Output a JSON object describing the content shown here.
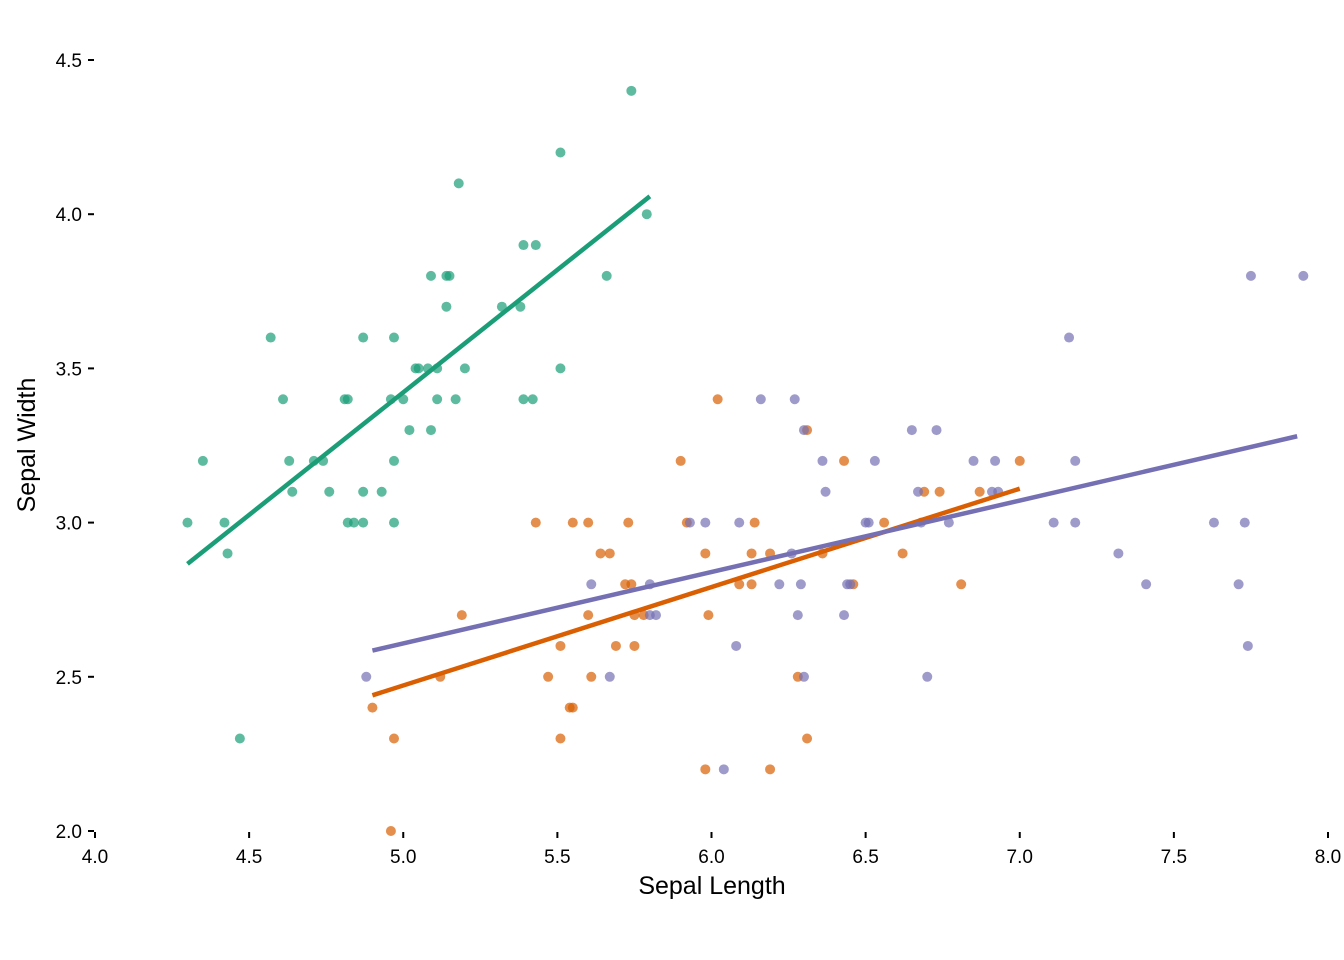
{
  "chart_data": {
    "type": "scatter",
    "title": "",
    "xlabel": "Sepal Length",
    "ylabel": "Sepal Width",
    "xlim": [
      4.0,
      8.0
    ],
    "ylim": [
      2.0,
      4.5
    ],
    "xticks": [
      "4.0",
      "4.5",
      "5.0",
      "5.5",
      "6.0",
      "6.5",
      "7.0",
      "7.5",
      "8.0"
    ],
    "yticks": [
      "2.0",
      "2.5",
      "3.0",
      "3.5",
      "4.0",
      "4.5"
    ],
    "grid": false,
    "legend": "none",
    "series": [
      {
        "color": "#1b9e77",
        "points": [
          [
            4.3,
            3.0
          ],
          [
            4.35,
            3.2
          ],
          [
            4.42,
            3.0
          ],
          [
            4.43,
            2.9
          ],
          [
            4.47,
            2.3
          ],
          [
            4.57,
            3.6
          ],
          [
            4.61,
            3.4
          ],
          [
            4.63,
            3.2
          ],
          [
            4.64,
            3.1
          ],
          [
            4.71,
            3.2
          ],
          [
            4.74,
            3.2
          ],
          [
            4.76,
            3.1
          ],
          [
            4.81,
            3.4
          ],
          [
            4.82,
            3.4
          ],
          [
            4.82,
            3.0
          ],
          [
            4.84,
            3.0
          ],
          [
            4.87,
            3.6
          ],
          [
            4.87,
            3.1
          ],
          [
            4.87,
            3.0
          ],
          [
            4.93,
            3.1
          ],
          [
            4.96,
            3.4
          ],
          [
            4.97,
            3.6
          ],
          [
            4.97,
            3.2
          ],
          [
            4.97,
            3.0
          ],
          [
            5.0,
            3.4
          ],
          [
            5.02,
            3.3
          ],
          [
            5.04,
            3.5
          ],
          [
            5.05,
            3.5
          ],
          [
            5.08,
            3.5
          ],
          [
            5.09,
            3.8
          ],
          [
            5.09,
            3.3
          ],
          [
            5.11,
            3.5
          ],
          [
            5.11,
            3.4
          ],
          [
            5.14,
            3.8
          ],
          [
            5.15,
            3.8
          ],
          [
            5.14,
            3.7
          ],
          [
            5.17,
            3.4
          ],
          [
            5.18,
            4.1
          ],
          [
            5.2,
            3.5
          ],
          [
            5.32,
            3.7
          ],
          [
            5.38,
            3.7
          ],
          [
            5.39,
            3.9
          ],
          [
            5.39,
            3.4
          ],
          [
            5.42,
            3.4
          ],
          [
            5.43,
            3.9
          ],
          [
            5.51,
            4.2
          ],
          [
            5.51,
            3.5
          ],
          [
            5.66,
            3.8
          ],
          [
            5.74,
            4.4
          ],
          [
            5.79,
            4.0
          ]
        ],
        "fit": [
          [
            4.3,
            2.866
          ],
          [
            5.8,
            4.058
          ]
        ]
      },
      {
        "color": "#d95f02",
        "points": [
          [
            4.9,
            2.4
          ],
          [
            4.96,
            2.0
          ],
          [
            4.97,
            2.3
          ],
          [
            5.12,
            2.5
          ],
          [
            5.19,
            2.7
          ],
          [
            5.43,
            3.0
          ],
          [
            5.47,
            2.5
          ],
          [
            5.51,
            2.6
          ],
          [
            5.51,
            2.3
          ],
          [
            5.54,
            2.4
          ],
          [
            5.55,
            2.4
          ],
          [
            5.55,
            3.0
          ],
          [
            5.6,
            2.7
          ],
          [
            5.6,
            3.0
          ],
          [
            5.61,
            2.5
          ],
          [
            5.64,
            2.9
          ],
          [
            5.67,
            2.9
          ],
          [
            5.72,
            2.8
          ],
          [
            5.73,
            3.0
          ],
          [
            5.74,
            2.8
          ],
          [
            5.75,
            2.7
          ],
          [
            5.75,
            2.6
          ],
          [
            5.69,
            2.6
          ],
          [
            5.78,
            2.7
          ],
          [
            5.9,
            3.2
          ],
          [
            5.92,
            3.0
          ],
          [
            5.98,
            2.9
          ],
          [
            5.98,
            2.2
          ],
          [
            5.99,
            2.7
          ],
          [
            6.02,
            3.4
          ],
          [
            6.09,
            2.8
          ],
          [
            6.13,
            2.8
          ],
          [
            6.13,
            2.9
          ],
          [
            6.14,
            3.0
          ],
          [
            6.19,
            2.9
          ],
          [
            6.19,
            2.2
          ],
          [
            6.28,
            2.5
          ],
          [
            6.31,
            3.3
          ],
          [
            6.31,
            2.3
          ],
          [
            6.36,
            2.9
          ],
          [
            6.43,
            3.2
          ],
          [
            6.46,
            2.8
          ],
          [
            6.56,
            3.0
          ],
          [
            6.62,
            2.9
          ],
          [
            6.69,
            3.1
          ],
          [
            6.74,
            3.1
          ],
          [
            6.81,
            2.8
          ],
          [
            6.87,
            3.1
          ],
          [
            7.0,
            3.2
          ]
        ],
        "fit": [
          [
            4.9,
            2.44
          ],
          [
            7.0,
            3.11
          ]
        ]
      },
      {
        "color": "#7570b3",
        "points": [
          [
            4.88,
            2.5
          ],
          [
            5.61,
            2.8
          ],
          [
            5.67,
            2.5
          ],
          [
            5.8,
            2.8
          ],
          [
            5.8,
            2.7
          ],
          [
            5.82,
            2.7
          ],
          [
            5.93,
            3.0
          ],
          [
            5.98,
            3.0
          ],
          [
            6.04,
            2.2
          ],
          [
            6.08,
            2.6
          ],
          [
            6.09,
            3.0
          ],
          [
            6.16,
            3.4
          ],
          [
            6.22,
            2.8
          ],
          [
            6.26,
            2.9
          ],
          [
            6.27,
            3.4
          ],
          [
            6.28,
            2.7
          ],
          [
            6.29,
            2.8
          ],
          [
            6.3,
            2.5
          ],
          [
            6.3,
            3.3
          ],
          [
            6.36,
            3.2
          ],
          [
            6.37,
            3.1
          ],
          [
            6.43,
            2.7
          ],
          [
            6.44,
            2.8
          ],
          [
            6.45,
            2.8
          ],
          [
            6.5,
            3.0
          ],
          [
            6.51,
            3.0
          ],
          [
            6.53,
            3.2
          ],
          [
            6.65,
            3.3
          ],
          [
            6.67,
            3.1
          ],
          [
            6.68,
            3.0
          ],
          [
            6.7,
            2.5
          ],
          [
            6.73,
            3.3
          ],
          [
            6.77,
            3.0
          ],
          [
            6.85,
            3.2
          ],
          [
            6.91,
            3.1
          ],
          [
            6.92,
            3.2
          ],
          [
            6.93,
            3.1
          ],
          [
            7.11,
            3.0
          ],
          [
            7.16,
            3.6
          ],
          [
            7.18,
            3.2
          ],
          [
            7.18,
            3.0
          ],
          [
            7.32,
            2.9
          ],
          [
            7.41,
            2.8
          ],
          [
            7.63,
            3.0
          ],
          [
            7.71,
            2.8
          ],
          [
            7.73,
            3.0
          ],
          [
            7.74,
            2.6
          ],
          [
            7.75,
            3.8
          ],
          [
            7.92,
            3.8
          ]
        ],
        "fit": [
          [
            4.9,
            2.585
          ],
          [
            7.9,
            3.28
          ]
        ]
      }
    ]
  }
}
